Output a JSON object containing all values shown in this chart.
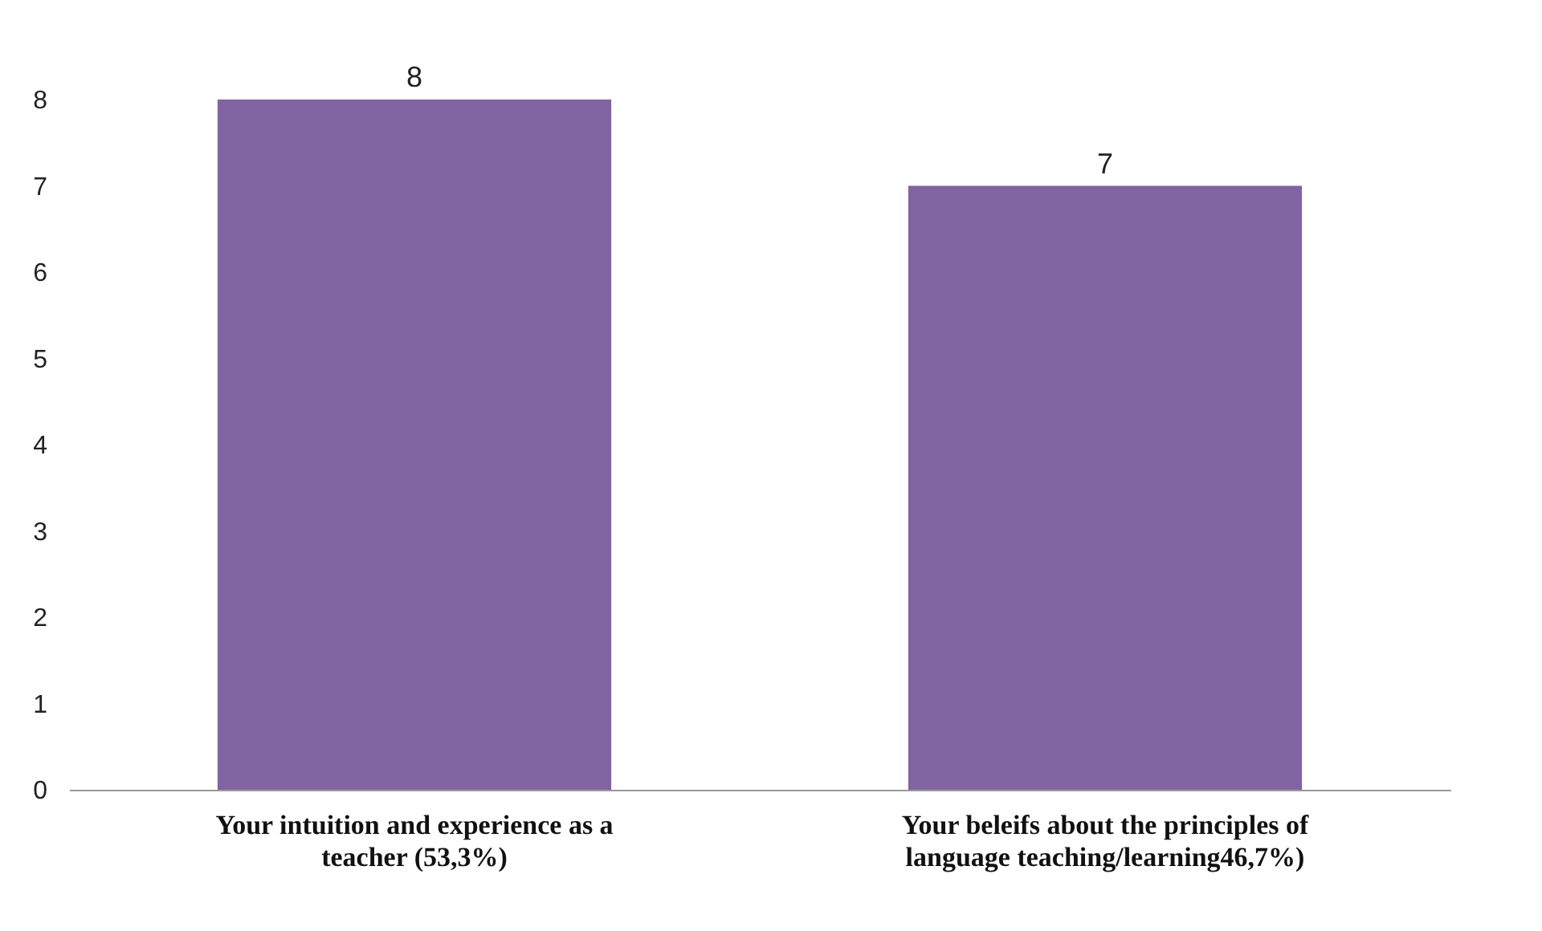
{
  "chart_data": {
    "type": "bar",
    "categories": [
      "Your intuition and experience as a teacher (53,3%)",
      "Your beleifs about the principles of language teaching/learning46,7%)"
    ],
    "values": [
      8,
      7
    ],
    "color": "#8064a2",
    "ylim": [
      0,
      8
    ],
    "yticks": [
      0,
      1,
      2,
      3,
      4,
      5,
      6,
      7,
      8
    ],
    "data_labels": true
  }
}
